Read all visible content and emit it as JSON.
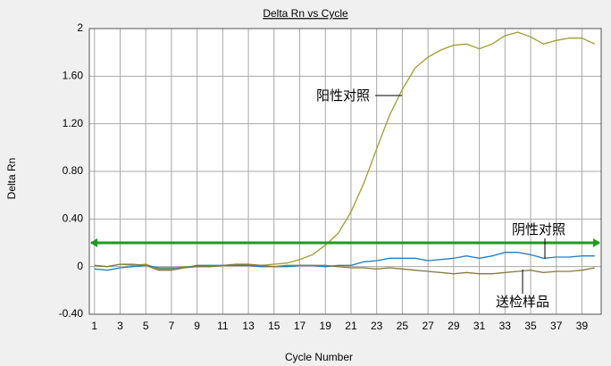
{
  "chart_data": {
    "type": "line",
    "title": "Delta Rn vs Cycle",
    "x_label": "Cycle Number",
    "y_label": "Delta Rn",
    "x": [
      1,
      2,
      3,
      4,
      5,
      6,
      7,
      8,
      9,
      10,
      11,
      12,
      13,
      14,
      15,
      16,
      17,
      18,
      19,
      20,
      21,
      22,
      23,
      24,
      25,
      26,
      27,
      28,
      29,
      30,
      31,
      32,
      33,
      34,
      35,
      36,
      37,
      38,
      39,
      40
    ],
    "series": [
      {
        "color": "#a39a2e",
        "values": [
          0.01,
          0,
          0.02,
          0.01,
          0.02,
          -0.02,
          -0.02,
          0,
          0,
          0,
          0.01,
          0.01,
          0.01,
          0.01,
          0.02,
          0.03,
          0.06,
          0.1,
          0.18,
          0.28,
          0.46,
          0.7,
          0.99,
          1.27,
          1.49,
          1.67,
          1.76,
          1.82,
          1.86,
          1.87,
          1.83,
          1.87,
          1.94,
          1.97,
          1.93,
          1.87,
          1.9,
          1.92,
          1.92,
          1.87
        ]
      },
      {
        "color": "#1f7fc4",
        "values": [
          -0.02,
          -0.03,
          -0.01,
          0,
          0.01,
          -0.01,
          -0.01,
          -0.01,
          0.01,
          0.01,
          0.01,
          0.01,
          0.01,
          0,
          0,
          0,
          0.01,
          0.01,
          0,
          0.01,
          0.01,
          0.04,
          0.05,
          0.07,
          0.07,
          0.07,
          0.05,
          0.06,
          0.07,
          0.09,
          0.07,
          0.09,
          0.12,
          0.12,
          0.1,
          0.07,
          0.08,
          0.08,
          0.09,
          0.09
        ]
      },
      {
        "color": "#857a3c",
        "values": [
          0.01,
          0,
          0.02,
          0.02,
          0.01,
          -0.03,
          -0.03,
          -0.01,
          0,
          0,
          0.01,
          0.02,
          0.02,
          0.01,
          0,
          0.01,
          0.01,
          0.01,
          0.01,
          0,
          -0.01,
          -0.01,
          -0.02,
          -0.01,
          -0.02,
          -0.03,
          -0.04,
          -0.05,
          -0.06,
          -0.05,
          -0.06,
          -0.06,
          -0.05,
          -0.04,
          -0.03,
          -0.05,
          -0.04,
          -0.04,
          -0.03,
          -0.01
        ]
      }
    ],
    "threshold": 0.2,
    "threshold_color": "#1e9a1e",
    "annotations": [
      "阳性对照",
      "阴性对照",
      "送检样品"
    ],
    "xlim": [
      0.6,
      40.5
    ],
    "ylim": [
      -0.4,
      2
    ],
    "xticks": [
      1,
      3,
      5,
      7,
      9,
      11,
      13,
      15,
      17,
      19,
      21,
      23,
      25,
      27,
      29,
      31,
      33,
      35,
      37,
      39
    ],
    "yticks": [
      2,
      {
        "value": 1.6,
        "label": "1.60"
      },
      {
        "value": 1.2,
        "label": "1.20"
      },
      {
        "value": 0.8,
        "label": "0.80"
      },
      {
        "value": 0.4,
        "label": "0.40"
      },
      0,
      {
        "value": -0.4,
        "label": "-0.40"
      }
    ],
    "grid": true
  }
}
